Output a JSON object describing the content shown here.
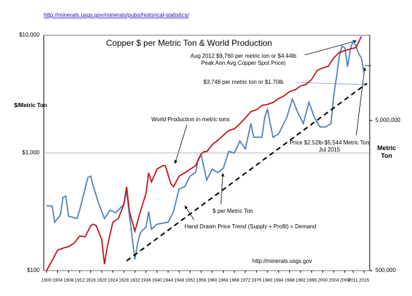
{
  "chart_data": {
    "type": "line",
    "source_url": "http://minerals.usgs.gov/minerals/pubs/historical-statistics/",
    "title": "Copper $ per Metric Ton & World Production",
    "ylabel": "$/Metric Ton",
    "y2label": "Metric Ton",
    "log_y": true,
    "log_y2": true,
    "grid": true,
    "xlim": [
      1899,
      2017
    ],
    "xticks": [
      1900,
      1904,
      1908,
      1912,
      1916,
      1920,
      1924,
      1928,
      1932,
      1936,
      1940,
      1944,
      1948,
      1952,
      1956,
      1960,
      1964,
      1968,
      1972,
      1976,
      1980,
      1984,
      1988,
      1992,
      1996,
      2000,
      2004,
      2008,
      2011,
      2015
    ],
    "ylim": [
      100,
      10000
    ],
    "yticks": [
      {
        "value": 100,
        "label": "$100"
      },
      {
        "value": 1000,
        "label": "$1,000"
      },
      {
        "value": 10000,
        "label": "$10,000"
      }
    ],
    "y2lim": [
      500000,
      18500000
    ],
    "y2ticks": [
      {
        "value": 500000,
        "label": "500,000"
      },
      {
        "value": 5000000,
        "label": "5,000,000"
      }
    ],
    "series": [
      {
        "color": "#4f81bd",
        "dash": false,
        "x": [
          1900,
          1902,
          1903,
          1905,
          1906,
          1907,
          1908,
          1911,
          1912,
          1915,
          1916,
          1917,
          1919,
          1921,
          1923,
          1925,
          1928,
          1929,
          1930,
          1932,
          1933,
          1934,
          1936,
          1937,
          1938,
          1940,
          1944,
          1946,
          1948,
          1950,
          1952,
          1954,
          1955,
          1956,
          1958,
          1960,
          1962,
          1964,
          1966,
          1968,
          1970,
          1972,
          1974,
          1975,
          1978,
          1979,
          1980,
          1982,
          1984,
          1987,
          1989,
          1991,
          1993,
          1995,
          1997,
          1999,
          2001,
          2003,
          2004,
          2005,
          2006,
          2007,
          2008,
          2009,
          2010,
          2011,
          2012,
          2013,
          2014,
          2015
        ],
        "values": [
          355,
          355,
          258,
          297,
          420,
          430,
          290,
          277,
          327,
          617,
          635,
          515,
          366,
          277,
          327,
          310,
          366,
          480,
          297,
          125,
          171,
          210,
          235,
          318,
          225,
          248,
          258,
          318,
          495,
          515,
          635,
          680,
          900,
          960,
          590,
          730,
          680,
          740,
          1030,
          1000,
          1260,
          1080,
          1780,
          1360,
          1360,
          2000,
          2350,
          1360,
          1450,
          2000,
          2880,
          2200,
          1780,
          2700,
          2000,
          1660,
          1660,
          1780,
          3100,
          4400,
          6600,
          8100,
          7800,
          5400,
          7600,
          8950,
          8100,
          7000,
          6400,
          4700
        ]
      },
      {
        "color": "#c0141c",
        "dash": false,
        "axis": "y2",
        "x": [
          1900,
          1902,
          1904,
          1906,
          1908,
          1910,
          1912,
          1914,
          1916,
          1917,
          1918,
          1920,
          1921,
          1922,
          1924,
          1926,
          1928,
          1929,
          1930,
          1932,
          1934,
          1936,
          1937,
          1938,
          1940,
          1942,
          1943,
          1945,
          1946,
          1948,
          1950,
          1952,
          1954,
          1956,
          1957,
          1958,
          1960,
          1962,
          1964,
          1966,
          1968,
          1970,
          1972,
          1974,
          1976,
          1978,
          1980,
          1982,
          1984,
          1986,
          1988,
          1990,
          1992,
          1994,
          1996,
          1998,
          2000,
          2002,
          2004,
          2006,
          2008,
          2010,
          2012,
          2013,
          2014
        ],
        "values": [
          500000,
          581000,
          684000,
          707000,
          722000,
          762000,
          850000,
          840000,
          996000,
          1020000,
          996000,
          806000,
          552000,
          722000,
          1050000,
          1110000,
          1380000,
          1810000,
          1240000,
          916000,
          1240000,
          1630000,
          2240000,
          1950000,
          2370000,
          2500000,
          2500000,
          1900000,
          1810000,
          2130000,
          2240000,
          2370000,
          2500000,
          3000000,
          3100000,
          3100000,
          3450000,
          3700000,
          3980000,
          4300000,
          4400000,
          4760000,
          5200000,
          5740000,
          5900000,
          6300000,
          6400000,
          6600000,
          7000000,
          7300000,
          7800000,
          8000000,
          8500000,
          8700000,
          9400000,
          10800000,
          11200000,
          11500000,
          13100000,
          14200000,
          14600000,
          15000000,
          15300000,
          16600000,
          18200000
        ]
      },
      {
        "color": "#000000",
        "dash": true,
        "x": [
          1929,
          2016
        ],
        "values": [
          121,
          3900
        ]
      }
    ],
    "annotations": [
      {
        "lines": [
          "Aug 2012 $9,760 per metric ton or $4.44lb",
          "Peak Ann Avg Copper Spot Price)"
        ]
      },
      {
        "lines": [
          "$3,746 per metric ton or $1.70lb"
        ]
      },
      {
        "lines": [
          "World Production in metric tons"
        ]
      },
      {
        "lines": [
          "Price $2.52lb-$5,544 Metric Ton",
          "Jul 2015"
        ]
      },
      {
        "lines": [
          "$ per Metric Ton"
        ]
      },
      {
        "lines": [
          "Hand Drawn Price Trend (Supply + Profit) = Demand"
        ]
      },
      {
        "lines": [
          "http://minerals.usgs.gov"
        ]
      }
    ]
  }
}
